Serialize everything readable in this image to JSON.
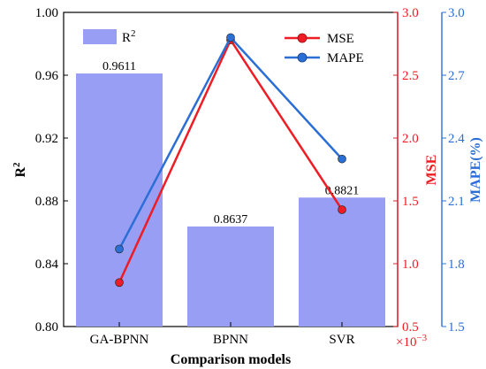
{
  "chart_data": {
    "type": "bar-line-combo",
    "categories": [
      "GA-BPNN",
      "BPNN",
      "SVR"
    ],
    "bars": {
      "name": "R",
      "name_sup": "2",
      "values": [
        0.9611,
        0.8637,
        0.8821
      ],
      "value_labels": [
        "0.9611",
        "0.8637",
        "0.8821"
      ],
      "color": "#979ef3"
    },
    "lines": [
      {
        "name": "MSE",
        "values": [
          0.85,
          2.78,
          1.43
        ],
        "color": "#ee1c24",
        "axis": "right1"
      },
      {
        "name": "MAPE",
        "values": [
          1.87,
          2.88,
          2.3
        ],
        "color": "#2b6fd6",
        "axis": "right2"
      }
    ],
    "xlabel": "Comparison models",
    "left_axis": {
      "label": "R",
      "label_sup": "2",
      "ylim": [
        0.8,
        1.0
      ],
      "ticks": [
        "0.80",
        "0.84",
        "0.88",
        "0.92",
        "0.96",
        "1.00"
      ]
    },
    "right1_axis": {
      "label": "MSE",
      "ylim": [
        0.5,
        3.0
      ],
      "ticks": [
        "0.5",
        "1.0",
        "1.5",
        "2.0",
        "2.5",
        "3.0"
      ],
      "multiplier_base": "×10",
      "multiplier_exp": "−3",
      "color": "#ee1c24"
    },
    "right2_axis": {
      "label": "MAPE(%)",
      "ylim": [
        1.5,
        3.0
      ],
      "ticks": [
        "1.5",
        "1.8",
        "2.1",
        "2.4",
        "2.7",
        "3.0"
      ],
      "color": "#2b6fd6"
    },
    "legend_placement": "top",
    "grid": false
  }
}
